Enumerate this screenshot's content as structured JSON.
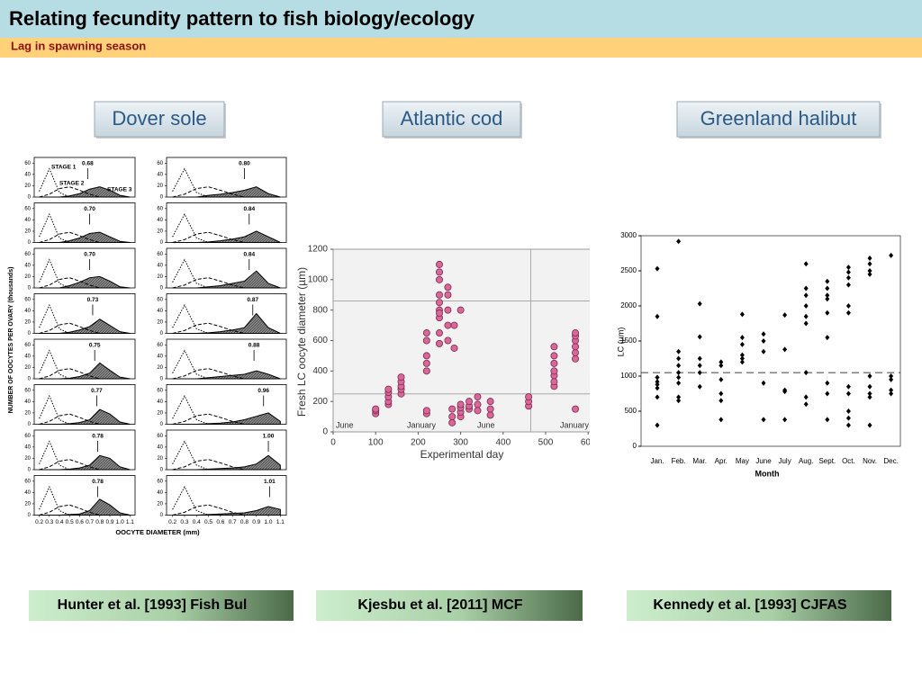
{
  "header": {
    "title": "Relating fecundity pattern to fish biology/ecology",
    "subtitle": "Lag in spawning season"
  },
  "panels": [
    {
      "label": "Dover sole",
      "citation": "Hunter et al. [1993] Fish Bul"
    },
    {
      "label": "Atlantic cod",
      "citation": "Kjesbu et al. [2011] MCF"
    },
    {
      "label": "Greenland halibut",
      "citation": "Kennedy et al. [1993] CJFAS"
    }
  ],
  "chart_data": [
    {
      "type": "small_multiples",
      "x_label": "OOCYTE DIAMETER (mm)",
      "y_label": "NUMBER OF OOCYTES PER OVARY (thousands)",
      "stage_labels": [
        "STAGE 1",
        "STAGE 2",
        "STAGE 3"
      ],
      "x": [
        0.2,
        0.3,
        0.4,
        0.5,
        0.6,
        0.7,
        0.8,
        0.9,
        1.0,
        1.1
      ],
      "xlim": [
        0.15,
        1.15
      ],
      "ylim": [
        0,
        70
      ],
      "yticks": [
        0,
        20,
        40,
        60
      ],
      "xticks": [
        0.2,
        0.3,
        0.4,
        0.5,
        0.6,
        0.7,
        0.8,
        0.9,
        {
          "value": 1,
          "label": "1.0"
        },
        1.1
      ],
      "stage1": [
        10,
        50,
        8,
        0,
        0,
        0,
        0,
        0,
        0,
        0
      ],
      "stage2": [
        0,
        5,
        15,
        18,
        12,
        5,
        0,
        0,
        0,
        0
      ],
      "panels": [
        {
          "mean": 0.68,
          "values": [
            0,
            0,
            0,
            2,
            6,
            14,
            18,
            12,
            3,
            0
          ]
        },
        {
          "mean": {
            "value": 0.7,
            "label": "0.70"
          },
          "values": [
            0,
            0,
            0,
            3,
            8,
            16,
            18,
            10,
            2,
            0
          ]
        },
        {
          "mean": {
            "value": 0.7,
            "label": "0.70"
          },
          "values": [
            0,
            0,
            0,
            4,
            10,
            18,
            20,
            12,
            2,
            0
          ]
        },
        {
          "mean": 0.73,
          "values": [
            0,
            0,
            0,
            2,
            6,
            12,
            25,
            14,
            3,
            0
          ]
        },
        {
          "mean": 0.75,
          "values": [
            0,
            0,
            0,
            1,
            4,
            10,
            28,
            15,
            3,
            0
          ]
        },
        {
          "mean": 0.77,
          "values": [
            0,
            0,
            0,
            1,
            3,
            8,
            26,
            18,
            4,
            0
          ]
        },
        {
          "mean": 0.78,
          "values": [
            0,
            0,
            0,
            1,
            3,
            8,
            25,
            20,
            5,
            0
          ]
        },
        {
          "mean": 0.78,
          "values": [
            0,
            0,
            0,
            1,
            2,
            8,
            28,
            18,
            4,
            0
          ]
        },
        {
          "mean": {
            "value": 0.8,
            "label": "0.80"
          },
          "values": [
            0,
            0,
            0,
            3,
            5,
            8,
            12,
            18,
            6,
            0
          ]
        },
        {
          "mean": 0.84,
          "values": [
            0,
            0,
            0,
            1,
            3,
            6,
            10,
            20,
            10,
            0
          ]
        },
        {
          "mean": 0.84,
          "values": [
            0,
            0,
            0,
            2,
            4,
            8,
            12,
            30,
            8,
            0
          ]
        },
        {
          "mean": 0.87,
          "values": [
            0,
            0,
            0,
            1,
            3,
            6,
            10,
            35,
            10,
            0
          ]
        },
        {
          "mean": 0.88,
          "values": [
            0,
            0,
            0,
            2,
            4,
            6,
            8,
            14,
            8,
            0
          ]
        },
        {
          "mean": 0.96,
          "values": [
            0,
            0,
            0,
            1,
            2,
            4,
            8,
            14,
            20,
            5
          ]
        },
        {
          "mean": {
            "value": 1,
            "label": "1.00"
          },
          "values": [
            0,
            0,
            0,
            1,
            2,
            3,
            5,
            10,
            25,
            8
          ]
        },
        {
          "mean": 1.01,
          "values": [
            0,
            0,
            0,
            1,
            2,
            3,
            4,
            8,
            15,
            10
          ]
        }
      ]
    },
    {
      "type": "scatter",
      "x_label": "Experimental day",
      "y_label": "Fresh LC oocyte diameter (µm)",
      "color": "#d9679a",
      "season_labels": [
        "June",
        "January",
        "June",
        "January"
      ],
      "xlim": [
        0,
        605
      ],
      "ylim": [
        0,
        1200
      ],
      "xticks": [
        0,
        100,
        200,
        300,
        400,
        500,
        600
      ],
      "yticks": [
        0,
        200,
        400,
        600,
        800,
        1000,
        1200
      ],
      "hlines": [
        860,
        250
      ],
      "vlines": [
        465
      ],
      "x": [
        100,
        100,
        100,
        130,
        130,
        130,
        130,
        130,
        160,
        160,
        160,
        160,
        160,
        220,
        220,
        220,
        220,
        220,
        220,
        220,
        250,
        250,
        250,
        250,
        250,
        250,
        250,
        250,
        250,
        250,
        270,
        270,
        270,
        270,
        270,
        285,
        285,
        300,
        280,
        280,
        280,
        300,
        300,
        300,
        300,
        320,
        320,
        320,
        340,
        340,
        340,
        370,
        370,
        370,
        460,
        460,
        460,
        520,
        520,
        520,
        520,
        520,
        520,
        520,
        570,
        570,
        570,
        570,
        570,
        570,
        570
      ],
      "values": [
        120,
        140,
        150,
        180,
        200,
        230,
        260,
        280,
        250,
        280,
        300,
        330,
        360,
        120,
        140,
        400,
        450,
        500,
        600,
        650,
        580,
        650,
        750,
        800,
        850,
        900,
        1000,
        1050,
        1100,
        780,
        900,
        950,
        800,
        700,
        600,
        550,
        700,
        800,
        60,
        100,
        150,
        100,
        130,
        160,
        180,
        150,
        170,
        200,
        180,
        230,
        140,
        110,
        150,
        200,
        170,
        200,
        230,
        300,
        330,
        370,
        400,
        450,
        500,
        560,
        150,
        480,
        520,
        560,
        600,
        630,
        650
      ]
    },
    {
      "type": "strip",
      "x_label": "Month",
      "y_label": "LC (µm)",
      "categories": [
        "Jan.",
        "Feb.",
        "Mar.",
        "Apr.",
        "May",
        "June",
        "July",
        "Aug.",
        "Sept.",
        "Oct.",
        "Nov.",
        "Dec."
      ],
      "ylim": [
        0,
        3000
      ],
      "yticks": [
        0,
        500,
        1000,
        1500,
        2000,
        2500,
        3000
      ],
      "reference_line": 1050,
      "values": [
        [
          2530,
          1850,
          980,
          920,
          880,
          830,
          700,
          300
        ],
        [
          2920,
          1350,
          1250,
          1150,
          1050,
          980,
          900,
          700,
          650
        ],
        [
          2030,
          1560,
          1250,
          1150,
          1050,
          850
        ],
        [
          1200,
          1150,
          950,
          750,
          650,
          380
        ],
        [
          1880,
          1550,
          1450,
          1300,
          1250,
          1200
        ],
        [
          1600,
          1500,
          1350,
          900,
          380
        ],
        [
          1870,
          1380,
          800,
          780,
          380
        ],
        [
          2600,
          2250,
          2150,
          2000,
          1850,
          1750,
          1050,
          700,
          600
        ],
        [
          2350,
          2250,
          2150,
          2100,
          1900,
          1550,
          900,
          750,
          380
        ],
        [
          2550,
          2480,
          2400,
          2300,
          2000,
          1900,
          850,
          750,
          500,
          400,
          300
        ],
        [
          2680,
          2600,
          2500,
          2450,
          1000,
          850,
          750,
          700,
          300
        ],
        [
          2720,
          1000,
          950,
          800,
          750
        ]
      ]
    }
  ]
}
